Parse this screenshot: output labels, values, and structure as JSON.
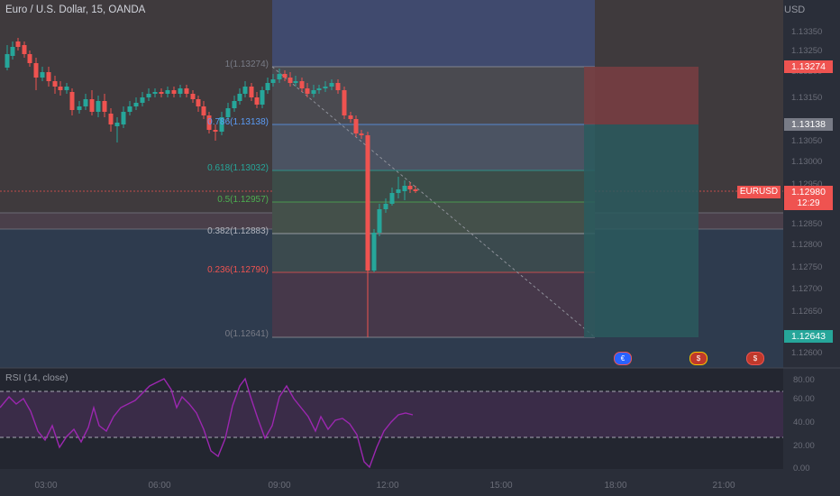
{
  "header": {
    "title": "Euro / U.S. Dollar, 15, OANDA",
    "currency": "USD"
  },
  "colors": {
    "up": "#26a69a",
    "down": "#ef5350",
    "rsi": "#9c27b0",
    "text": "#d1d4dc",
    "muted": "#787b86"
  },
  "fib_levels": [
    {
      "label": "1(1.13274)",
      "color": "#787b86"
    },
    {
      "label": "0.786(1.13138)",
      "color": "#5b9cf6"
    },
    {
      "label": "0.618(1.13032)",
      "color": "#26a69a"
    },
    {
      "label": "0.5(1.12957)",
      "color": "#4caf50"
    },
    {
      "label": "0.382(1.12883)",
      "color": "#b2b5be"
    },
    {
      "label": "0.236(1.12790)",
      "color": "#ef5350"
    },
    {
      "label": "0(1.12641)",
      "color": "#787b86"
    }
  ],
  "price_axis": {
    "ticks": [
      "1.13350",
      "1.13250",
      "1.13200",
      "1.13150",
      "1.13100",
      "1.13050",
      "1.13000",
      "1.12950",
      "1.12900",
      "1.12850",
      "1.12800",
      "1.12750",
      "1.12700",
      "1.12650",
      "1.12600"
    ],
    "badges": {
      "top": "1.13274",
      "mid": "1.13138",
      "current": "1.12980",
      "countdown": "12:29",
      "bottom": "1.12643",
      "symbol": "EURUSD"
    }
  },
  "rsi": {
    "label": "RSI (14, close)",
    "ticks": [
      "80.00",
      "60.00",
      "40.00",
      "20.00",
      "0.00"
    ]
  },
  "time_axis": [
    "03:00",
    "06:00",
    "09:00",
    "12:00",
    "15:00",
    "18:00",
    "21:00"
  ],
  "events": [
    {
      "name": "eu-event-icon",
      "symbol": "€"
    },
    {
      "name": "us-event-icon",
      "symbol": "$"
    },
    {
      "name": "us-event-icon",
      "symbol": "$"
    }
  ]
}
